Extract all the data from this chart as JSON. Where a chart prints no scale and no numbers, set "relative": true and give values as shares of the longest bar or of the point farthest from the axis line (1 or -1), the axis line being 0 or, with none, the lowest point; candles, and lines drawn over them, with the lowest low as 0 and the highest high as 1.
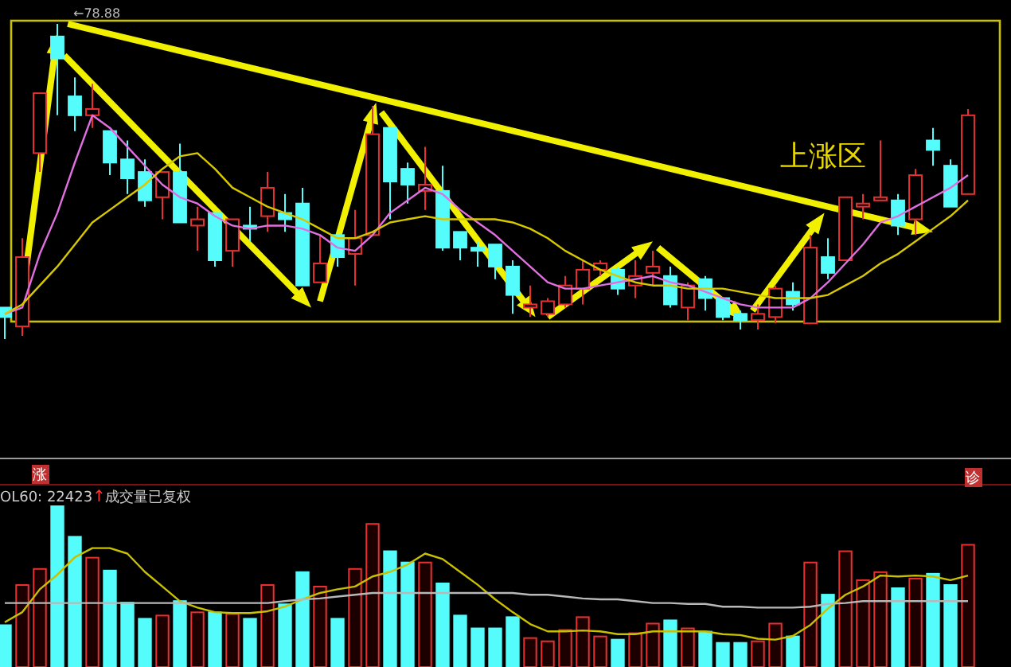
{
  "chart_data": [
    {
      "type": "candlestick",
      "relative": true,
      "categories": [
        null,
        null,
        null,
        null,
        null,
        null,
        null,
        null,
        null,
        null,
        null,
        null,
        null,
        null,
        null,
        null,
        null,
        null,
        null,
        null,
        null,
        null,
        null,
        null,
        null,
        null,
        null,
        null,
        null,
        null,
        null,
        null,
        null,
        null,
        null,
        null,
        null,
        null,
        null,
        null,
        null,
        null,
        null,
        null,
        null,
        null,
        null,
        null,
        null,
        null,
        null,
        null,
        null,
        null,
        null,
        null
      ],
      "ohlc": [
        [
          0.1,
          0.1,
          0,
          0.07
        ],
        [
          0.04,
          0.32,
          0.01,
          0.26
        ],
        [
          0.59,
          0.78,
          0.53,
          0.78
        ],
        [
          0.96,
          1,
          0.71,
          0.89
        ],
        [
          0.77,
          0.83,
          0.66,
          0.71
        ],
        [
          0.71,
          0.81,
          0.67,
          0.73
        ],
        [
          0.66,
          0.66,
          0.52,
          0.56
        ],
        [
          0.57,
          0.63,
          0.46,
          0.51
        ],
        [
          0.53,
          0.57,
          0.42,
          0.44
        ],
        [
          0.45,
          0.53,
          0.38,
          0.53
        ],
        [
          0.53,
          0.62,
          0.37,
          0.37
        ],
        [
          0.36,
          0.42,
          0.28,
          0.38
        ],
        [
          0.4,
          0.4,
          0.23,
          0.25
        ],
        [
          0.28,
          0.38,
          0.23,
          0.38
        ],
        [
          0.36,
          0.42,
          0.31,
          0.35
        ],
        [
          0.39,
          0.53,
          0.34,
          0.48
        ],
        [
          0.4,
          0.46,
          0.34,
          0.38
        ],
        [
          0.43,
          0.48,
          0.17,
          0.17
        ],
        [
          0.18,
          0.33,
          0.18,
          0.24
        ],
        [
          0.33,
          0.33,
          0.23,
          0.26
        ],
        [
          0.27,
          0.41,
          0.17,
          0.32
        ],
        [
          0.33,
          0.74,
          0.33,
          0.65
        ],
        [
          0.67,
          0.67,
          0.38,
          0.5
        ],
        [
          0.54,
          0.56,
          0.43,
          0.49
        ],
        [
          0.47,
          0.61,
          0.41,
          0.49
        ],
        [
          0.47,
          0.55,
          0.28,
          0.29
        ],
        [
          0.34,
          0.34,
          0.25,
          0.29
        ],
        [
          0.29,
          0.31,
          0.23,
          0.28
        ],
        [
          0.3,
          0.3,
          0.19,
          0.23
        ],
        [
          0.23,
          0.25,
          0.08,
          0.14
        ],
        [
          0.1,
          0.17,
          0.07,
          0.11
        ],
        [
          0.08,
          0.13,
          0.07,
          0.12
        ],
        [
          0.11,
          0.2,
          0.1,
          0.17
        ],
        [
          0.16,
          0.25,
          0.11,
          0.22
        ],
        [
          0.22,
          0.25,
          0.2,
          0.24
        ],
        [
          0.22,
          0.23,
          0.14,
          0.16
        ],
        [
          0.17,
          0.25,
          0.13,
          0.2
        ],
        [
          0.21,
          0.28,
          0.17,
          0.23
        ],
        [
          0.2,
          0.23,
          0.1,
          0.11
        ],
        [
          0.1,
          0.18,
          0.06,
          0.17
        ],
        [
          0.19,
          0.2,
          0.09,
          0.13
        ],
        [
          0.13,
          0.13,
          0.06,
          0.07
        ],
        [
          0.08,
          0.09,
          0.03,
          0.06
        ],
        [
          0.06,
          0.11,
          0.03,
          0.08
        ],
        [
          0.07,
          0.17,
          0.05,
          0.16
        ],
        [
          0.15,
          0.18,
          0.09,
          0.11
        ],
        [
          0.05,
          0.33,
          0.05,
          0.29
        ],
        [
          0.26,
          0.32,
          0.19,
          0.21
        ],
        [
          0.25,
          0.45,
          0.25,
          0.45
        ],
        [
          0.42,
          0.46,
          0.38,
          0.43
        ],
        [
          0.44,
          0.63,
          0.44,
          0.45
        ],
        [
          0.44,
          0.46,
          0.33,
          0.36
        ],
        [
          0.38,
          0.54,
          0.33,
          0.52
        ],
        [
          0.63,
          0.67,
          0.55,
          0.6
        ],
        [
          0.55,
          0.57,
          0.42,
          0.42
        ],
        [
          0.46,
          0.73,
          0.46,
          0.71
        ]
      ],
      "colors": [
        "#54fcfc",
        "#e83030",
        "#e83030",
        "#54fcfc",
        "#54fcfc",
        "#e83030",
        "#54fcfc",
        "#54fcfc",
        "#54fcfc",
        "#e83030",
        "#54fcfc",
        "#e83030",
        "#54fcfc",
        "#e83030",
        "#54fcfc",
        "#e83030",
        "#54fcfc",
        "#54fcfc",
        "#e83030",
        "#54fcfc",
        "#e83030",
        "#e83030",
        "#54fcfc",
        "#54fcfc",
        "#e83030",
        "#54fcfc",
        "#54fcfc",
        "#54fcfc",
        "#54fcfc",
        "#54fcfc",
        "#e83030",
        "#e83030",
        "#e83030",
        "#e83030",
        "#e83030",
        "#54fcfc",
        "#e83030",
        "#e83030",
        "#54fcfc",
        "#e83030",
        "#54fcfc",
        "#54fcfc",
        "#54fcfc",
        "#e83030",
        "#e83030",
        "#54fcfc",
        "#e83030",
        "#54fcfc",
        "#e83030",
        "#e83030",
        "#e83030",
        "#54fcfc",
        "#e83030",
        "#54fcfc",
        "#54fcfc",
        "#e83030"
      ],
      "series": [
        {
          "type": "line",
          "color": "#e070e0",
          "values": [
            0.08,
            0.1,
            0.27,
            0.4,
            0.56,
            0.71,
            0.67,
            0.61,
            0.55,
            0.49,
            0.45,
            0.43,
            0.39,
            0.36,
            0.35,
            0.36,
            0.36,
            0.35,
            0.33,
            0.29,
            0.28,
            0.33,
            0.4,
            0.44,
            0.48,
            0.46,
            0.41,
            0.37,
            0.33,
            0.28,
            0.23,
            0.18,
            0.16,
            0.16,
            0.17,
            0.18,
            0.19,
            0.2,
            0.18,
            0.17,
            0.15,
            0.13,
            0.11,
            0.1,
            0.1,
            0.1,
            0.13,
            0.18,
            0.24,
            0.3,
            0.37,
            0.39,
            0.42,
            0.45,
            0.48,
            0.52
          ]
        },
        {
          "type": "line",
          "color": "#d8c800",
          "values": [
            0.08,
            0.11,
            0.17,
            0.23,
            0.3,
            0.37,
            0.41,
            0.45,
            0.49,
            0.54,
            0.58,
            0.59,
            0.54,
            0.48,
            0.45,
            0.42,
            0.4,
            0.38,
            0.35,
            0.32,
            0.32,
            0.34,
            0.37,
            0.38,
            0.39,
            0.38,
            0.38,
            0.38,
            0.38,
            0.37,
            0.35,
            0.32,
            0.28,
            0.25,
            0.22,
            0.2,
            0.18,
            0.17,
            0.17,
            0.16,
            0.16,
            0.16,
            0.15,
            0.14,
            0.13,
            0.13,
            0.13,
            0.14,
            0.17,
            0.2,
            0.24,
            0.27,
            0.31,
            0.35,
            0.39,
            0.44
          ]
        }
      ],
      "annotations": [
        "←78.88",
        "上涨区"
      ]
    },
    {
      "type": "bar",
      "relative": true,
      "categories": [
        null,
        null,
        null,
        null,
        null,
        null,
        null,
        null,
        null,
        null,
        null,
        null,
        null,
        null,
        null,
        null,
        null,
        null,
        null,
        null,
        null,
        null,
        null,
        null,
        null,
        null,
        null,
        null,
        null,
        null,
        null,
        null,
        null,
        null,
        null,
        null,
        null,
        null,
        null,
        null,
        null,
        null,
        null,
        null,
        null,
        null,
        null,
        null,
        null,
        null,
        null,
        null,
        null,
        null,
        null,
        null
      ],
      "colors": [
        "#54fcfc",
        "#e83030",
        "#e83030",
        "#54fcfc",
        "#54fcfc",
        "#e83030",
        "#54fcfc",
        "#54fcfc",
        "#54fcfc",
        "#e83030",
        "#54fcfc",
        "#e83030",
        "#54fcfc",
        "#e83030",
        "#54fcfc",
        "#e83030",
        "#54fcfc",
        "#54fcfc",
        "#e83030",
        "#54fcfc",
        "#e83030",
        "#e83030",
        "#54fcfc",
        "#54fcfc",
        "#e83030",
        "#54fcfc",
        "#54fcfc",
        "#54fcfc",
        "#54fcfc",
        "#54fcfc",
        "#e83030",
        "#e83030",
        "#e83030",
        "#e83030",
        "#e83030",
        "#54fcfc",
        "#e83030",
        "#e83030",
        "#54fcfc",
        "#e83030",
        "#54fcfc",
        "#54fcfc",
        "#54fcfc",
        "#e83030",
        "#e83030",
        "#54fcfc",
        "#e83030",
        "#54fcfc",
        "#e83030",
        "#e83030",
        "#e83030",
        "#54fcfc",
        "#e83030",
        "#54fcfc",
        "#54fcfc",
        "#e83030"
      ],
      "values": [
        0.26,
        0.51,
        0.61,
        1,
        0.81,
        0.68,
        0.6,
        0.4,
        0.3,
        0.32,
        0.41,
        0.34,
        0.34,
        0.33,
        0.3,
        0.51,
        0.39,
        0.59,
        0.5,
        0.3,
        0.61,
        0.89,
        0.72,
        0.65,
        0.65,
        0.52,
        0.32,
        0.24,
        0.24,
        0.31,
        0.18,
        0.16,
        0.23,
        0.31,
        0.19,
        0.17,
        0.21,
        0.27,
        0.29,
        0.24,
        0.22,
        0.15,
        0.15,
        0.16,
        0.27,
        0.19,
        0.65,
        0.45,
        0.72,
        0.54,
        0.59,
        0.49,
        0.55,
        0.58,
        0.51,
        0.76
      ],
      "annotations": [
        "涨",
        "OL60: 22423",
        "↑",
        "成交量已复权",
        "诊"
      ]
    },
    {
      "type": "line",
      "relative": true,
      "categories": [
        null,
        null,
        null,
        null,
        null,
        null,
        null,
        null,
        null,
        null,
        null,
        null,
        null,
        null,
        null,
        null,
        null,
        null,
        null,
        null,
        null,
        null,
        null,
        null,
        null,
        null,
        null,
        null,
        null,
        null,
        null,
        null,
        null,
        null,
        null,
        null,
        null,
        null,
        null,
        null,
        null,
        null,
        null,
        null,
        null,
        null,
        null,
        null,
        null,
        null,
        null,
        null,
        null,
        null,
        null,
        null
      ],
      "series": [
        {
          "type": "line",
          "color": "#c8c000",
          "values": [
            0.19,
            0.3,
            0.55,
            0.71,
            0.9,
            1,
            1,
            0.94,
            0.74,
            0.58,
            0.42,
            0.35,
            0.3,
            0.29,
            0.29,
            0.31,
            0.36,
            0.44,
            0.51,
            0.55,
            0.58,
            0.69,
            0.74,
            0.82,
            0.94,
            0.88,
            0.74,
            0.6,
            0.44,
            0.3,
            0.17,
            0.09,
            0.09,
            0.1,
            0.09,
            0.06,
            0.06,
            0.09,
            0.09,
            0.09,
            0.09,
            0.06,
            0.05,
            0.01,
            0,
            0.04,
            0.16,
            0.34,
            0.49,
            0.58,
            0.7,
            0.69,
            0.7,
            0.69,
            0.65,
            0.7
          ]
        },
        {
          "type": "line",
          "color": "#b8b8b8",
          "values": [
            0.4,
            0.4,
            0.4,
            0.4,
            0.4,
            0.4,
            0.4,
            0.4,
            0.4,
            0.4,
            0.4,
            0.4,
            0.4,
            0.4,
            0.4,
            0.4,
            0.42,
            0.44,
            0.45,
            0.47,
            0.49,
            0.51,
            0.51,
            0.51,
            0.51,
            0.51,
            0.51,
            0.51,
            0.51,
            0.51,
            0.49,
            0.49,
            0.47,
            0.45,
            0.44,
            0.44,
            0.42,
            0.4,
            0.4,
            0.39,
            0.39,
            0.36,
            0.36,
            0.35,
            0.35,
            0.35,
            0.36,
            0.39,
            0.4,
            0.42,
            0.42,
            0.42,
            0.42,
            0.42,
            0.42,
            0.42
          ]
        }
      ]
    }
  ]
}
